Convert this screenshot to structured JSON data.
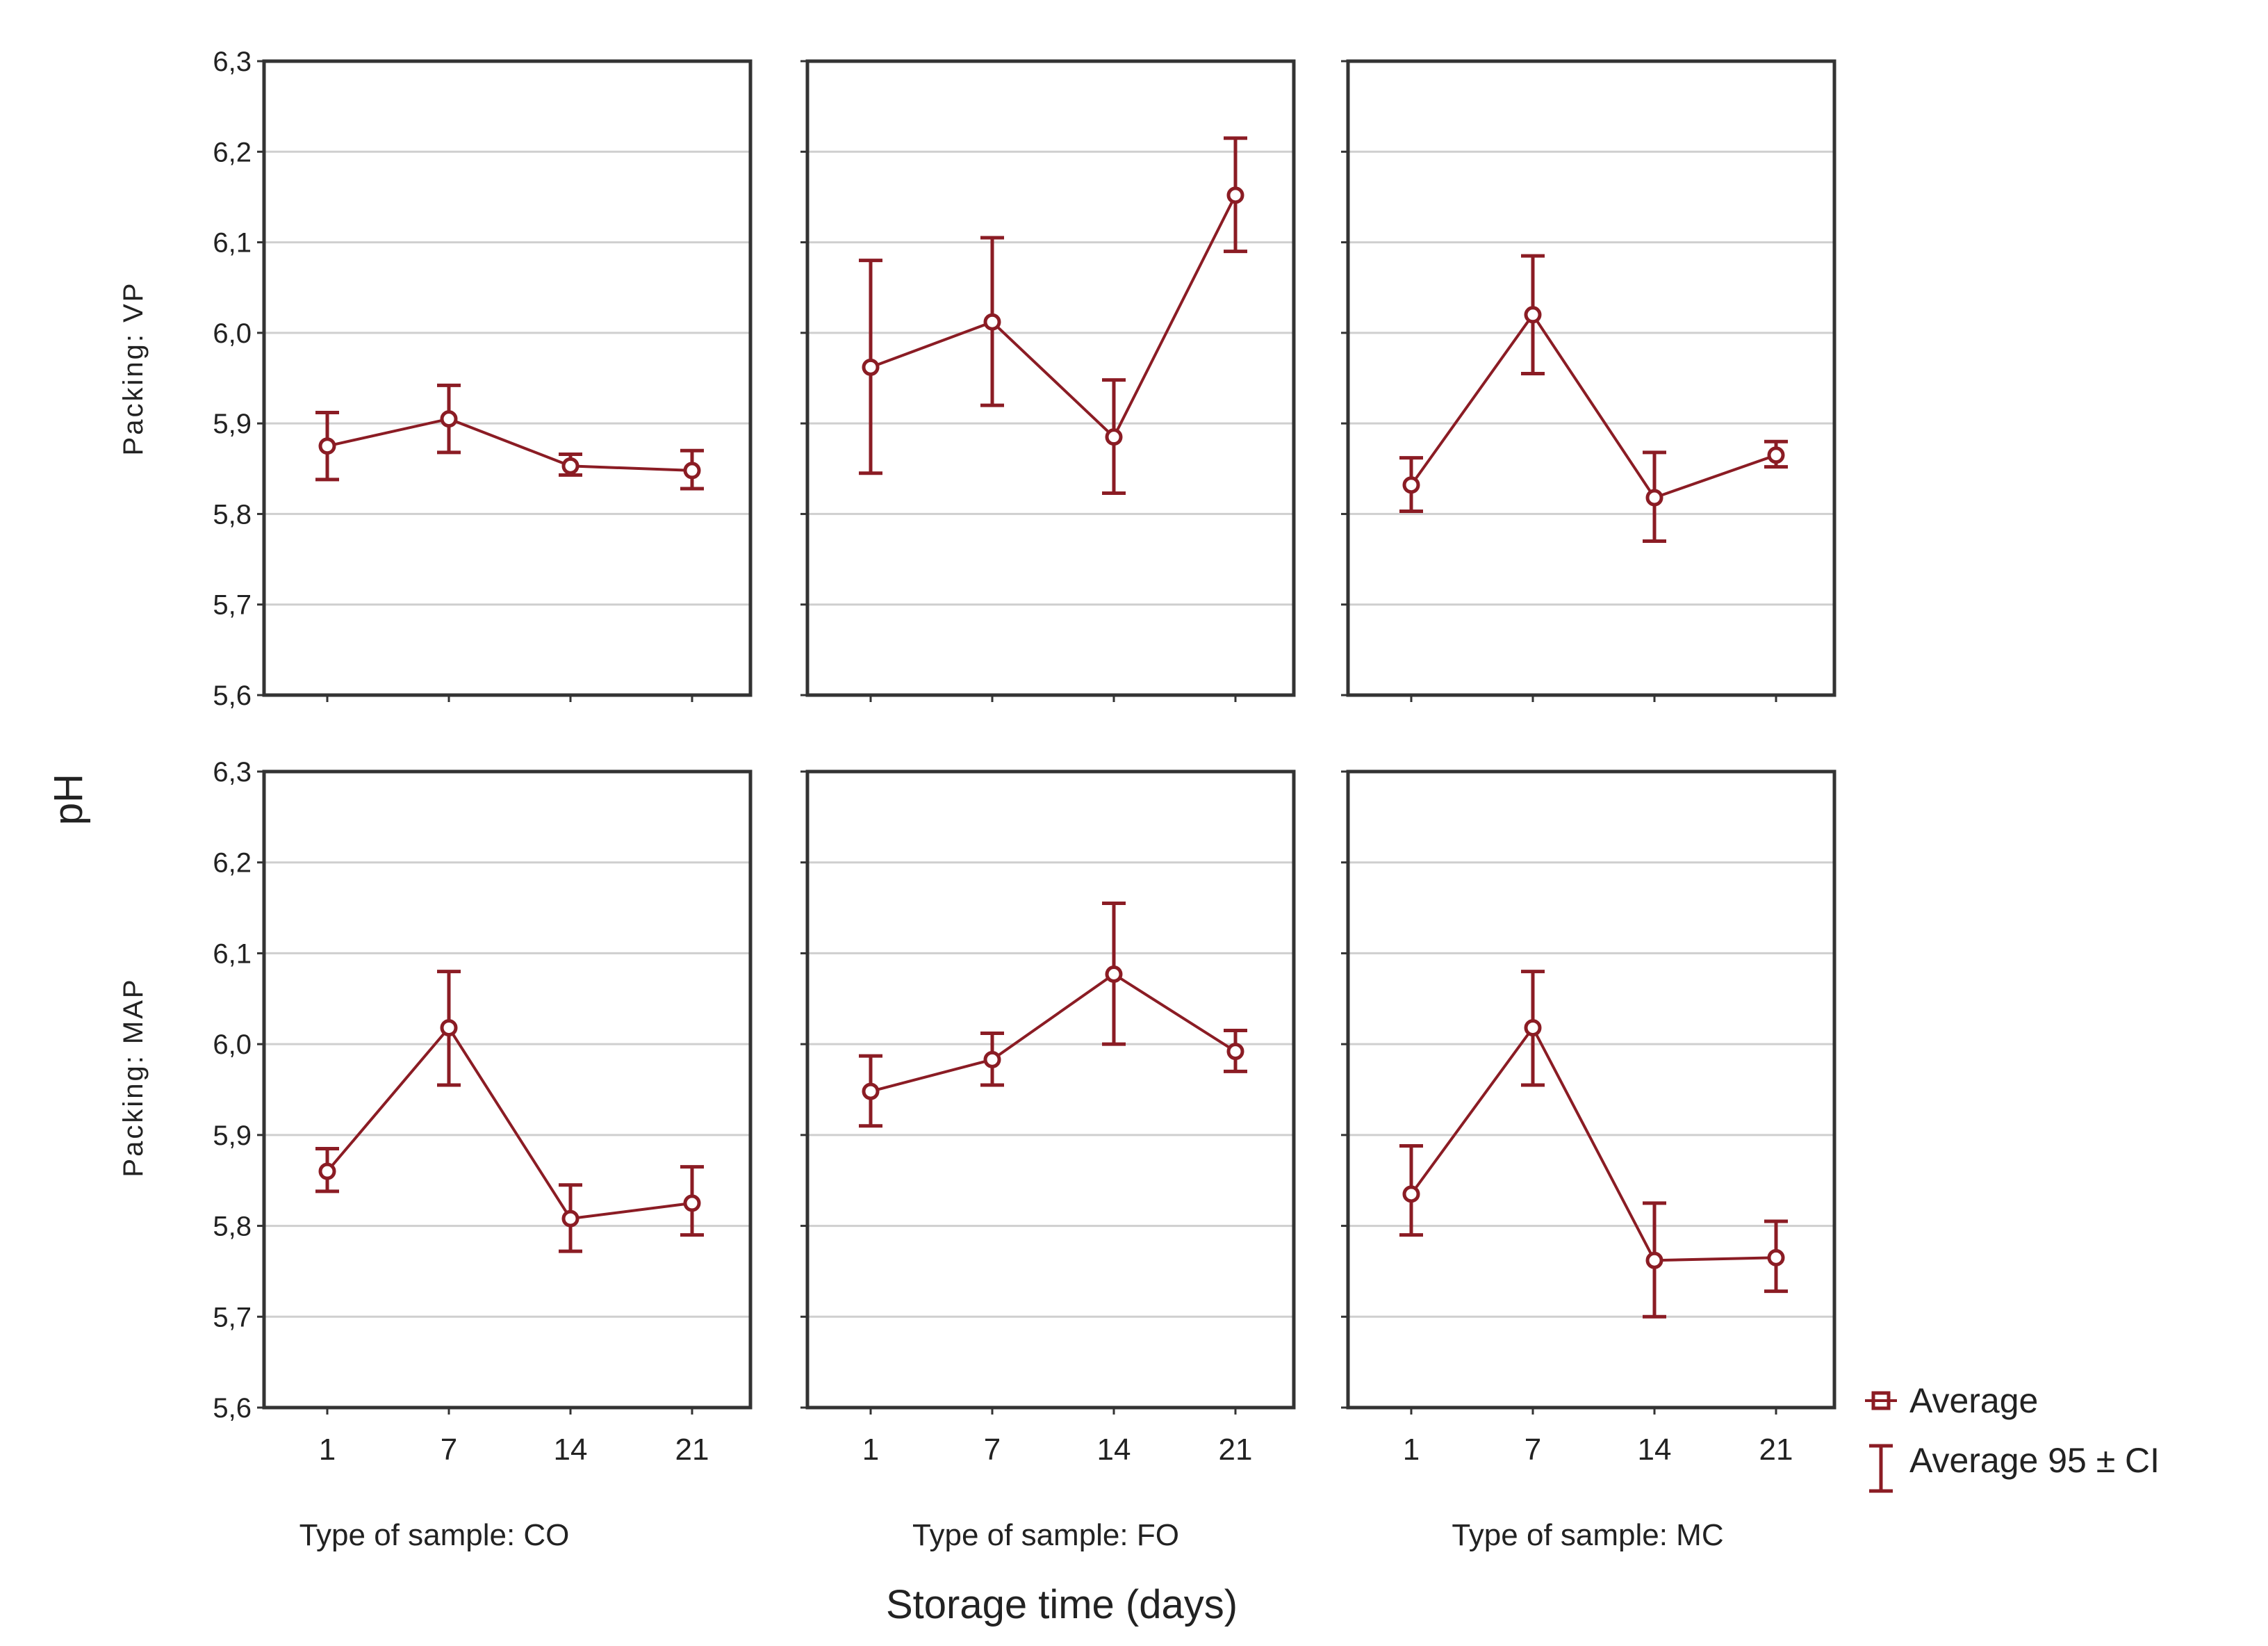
{
  "chart_data": {
    "type": "line",
    "ylabel": "pH",
    "xlabel": "Storage time (days)",
    "categories": [
      "1",
      "7",
      "14",
      "21"
    ],
    "ylim": [
      5.6,
      6.3
    ],
    "yticks": [
      "5,6",
      "5,7",
      "5,8",
      "5,9",
      "6,0",
      "6,1",
      "6,2",
      "6,3"
    ],
    "ytick_values": [
      5.6,
      5.7,
      5.8,
      5.9,
      6.0,
      6.1,
      6.2,
      6.3
    ],
    "grid": true,
    "colors": {
      "series": "#8b1c24",
      "grid": "#cfcfcf",
      "frame": "#333333"
    },
    "rows": [
      {
        "label": "Packing: VP"
      },
      {
        "label": "Packing: MAP"
      }
    ],
    "columns": [
      {
        "label": "Type of sample: CO"
      },
      {
        "label": "Type of sample: FO"
      },
      {
        "label": "Type of sample: MC"
      }
    ],
    "panels": [
      {
        "row": 0,
        "col": 0,
        "values": [
          5.875,
          5.905,
          5.853,
          5.848
        ],
        "ci_low": [
          5.838,
          5.868,
          5.843,
          5.828
        ],
        "ci_high": [
          5.912,
          5.942,
          5.866,
          5.87
        ]
      },
      {
        "row": 0,
        "col": 1,
        "values": [
          5.962,
          6.012,
          5.885,
          6.152
        ],
        "ci_low": [
          5.845,
          5.92,
          5.823,
          6.09
        ],
        "ci_high": [
          6.08,
          6.105,
          5.948,
          6.215
        ]
      },
      {
        "row": 0,
        "col": 2,
        "values": [
          5.832,
          6.02,
          5.818,
          5.865
        ],
        "ci_low": [
          5.803,
          5.955,
          5.77,
          5.852
        ],
        "ci_high": [
          5.862,
          6.085,
          5.868,
          5.88
        ]
      },
      {
        "row": 1,
        "col": 0,
        "values": [
          5.86,
          6.018,
          5.808,
          5.825
        ],
        "ci_low": [
          5.838,
          5.955,
          5.772,
          5.79
        ],
        "ci_high": [
          5.885,
          6.08,
          5.845,
          5.865
        ]
      },
      {
        "row": 1,
        "col": 1,
        "values": [
          5.948,
          5.983,
          6.077,
          5.992
        ],
        "ci_low": [
          5.91,
          5.955,
          6.0,
          5.97
        ],
        "ci_high": [
          5.987,
          6.012,
          6.155,
          6.015
        ]
      },
      {
        "row": 1,
        "col": 2,
        "values": [
          5.835,
          6.018,
          5.762,
          5.765
        ],
        "ci_low": [
          5.79,
          5.955,
          5.7,
          5.728
        ],
        "ci_high": [
          5.888,
          6.08,
          5.825,
          5.805
        ]
      }
    ],
    "legend": {
      "position": "bottom-right",
      "entries": [
        "Average",
        "Average 95 ± CI"
      ]
    }
  }
}
